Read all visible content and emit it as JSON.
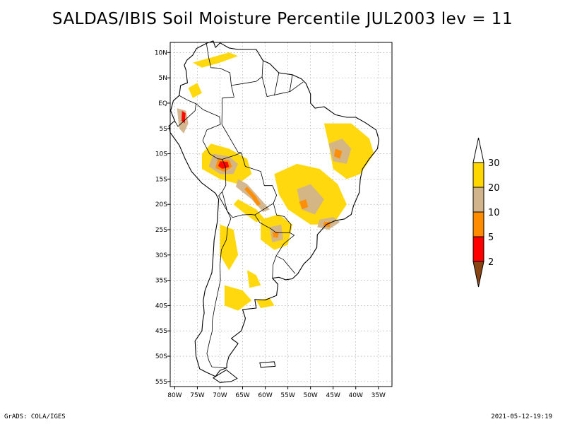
{
  "title": "SALDAS/IBIS Soil Moisture Percentile JUL2003 lev = 11",
  "footer": {
    "left": "GrADS: COLA/IGES",
    "right": "2021-05-12-19:19"
  },
  "map": {
    "region": "South America",
    "variable": "Soil Moisture Percentile",
    "lon_range": [
      -81,
      -32
    ],
    "lat_range": [
      -56,
      12
    ],
    "grid_lines": true,
    "lat_ticks": [
      {
        "value": 10,
        "label": "10N"
      },
      {
        "value": 5,
        "label": "5N"
      },
      {
        "value": 0,
        "label": "EQ"
      },
      {
        "value": -5,
        "label": "5S"
      },
      {
        "value": -10,
        "label": "10S"
      },
      {
        "value": -15,
        "label": "15S"
      },
      {
        "value": -20,
        "label": "20S"
      },
      {
        "value": -25,
        "label": "25S"
      },
      {
        "value": -30,
        "label": "30S"
      },
      {
        "value": -35,
        "label": "35S"
      },
      {
        "value": -40,
        "label": "40S"
      },
      {
        "value": -45,
        "label": "45S"
      },
      {
        "value": -50,
        "label": "50S"
      },
      {
        "value": -55,
        "label": "55S"
      }
    ],
    "lon_ticks": [
      {
        "value": -80,
        "label": "80W"
      },
      {
        "value": -75,
        "label": "75W"
      },
      {
        "value": -70,
        "label": "70W"
      },
      {
        "value": -65,
        "label": "65W"
      },
      {
        "value": -60,
        "label": "60W"
      },
      {
        "value": -55,
        "label": "55W"
      },
      {
        "value": -50,
        "label": "50W"
      },
      {
        "value": -45,
        "label": "45W"
      },
      {
        "value": -40,
        "label": "40W"
      },
      {
        "value": -35,
        "label": "35W"
      }
    ]
  },
  "legend": {
    "placement": "right",
    "classes": [
      {
        "range": "<2",
        "color": "#8b4513"
      },
      {
        "range": "2-5",
        "color": "#ff0000"
      },
      {
        "range": "5-10",
        "color": "#ff8c00"
      },
      {
        "range": "10-20",
        "color": "#d2b48c"
      },
      {
        "range": "20-30",
        "color": "#ffd700"
      },
      {
        "range": ">30",
        "color": "#ffffff"
      }
    ],
    "labels": [
      "2",
      "5",
      "10",
      "20",
      "30"
    ]
  },
  "colors": {
    "brown": "#8b4513",
    "red": "#ff0000",
    "orange": "#ff8c00",
    "tan": "#d2b48c",
    "gold": "#ffd700",
    "land": "#ffffff",
    "coast": "#000000",
    "grid": "#9a9a9a"
  }
}
